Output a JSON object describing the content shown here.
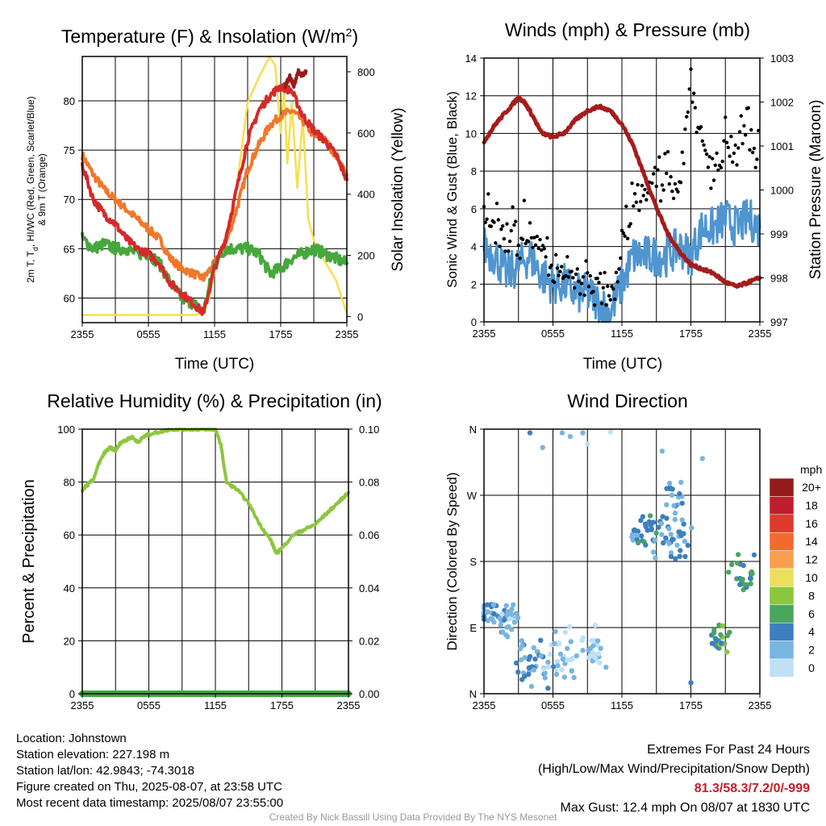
{
  "chart_data": [
    {
      "id": "temp",
      "type": "line",
      "title": "Temperature (F) & Insolation (W/m",
      "title_sup": "2",
      "title_close": ")",
      "xlabel": "Time (UTC)",
      "ylabel_lines": [
        "2m T, T",
        "d",
        ", HI/WC (Red, Green, Scarlet/Blue)",
        "& 9m T (Orange)"
      ],
      "y2label": "Solar Insolation (Yellow)",
      "xticks": [
        "2355",
        "0555",
        "1155",
        "1755",
        "2355"
      ],
      "ylim": [
        57.5,
        84.5
      ],
      "yticks": [
        60,
        65,
        70,
        75,
        80
      ],
      "y2lim": [
        -20,
        850
      ],
      "y2ticks": [
        0,
        200,
        400,
        600,
        800
      ],
      "colors": {
        "t2m": "#d42a2a",
        "td": "#46a83c",
        "t9m": "#f0782a",
        "hi": "#9b1a1a",
        "solar": "#f5df50"
      },
      "series": [
        {
          "key": "t2m",
          "x": [
            0,
            1,
            2,
            3,
            4,
            5,
            6,
            7,
            8,
            9,
            10,
            11,
            12,
            13,
            14,
            15,
            16,
            17,
            18,
            19,
            20,
            21,
            22,
            23,
            24
          ],
          "values": [
            73.5,
            70,
            68.5,
            67.5,
            66,
            65,
            64.5,
            63.5,
            61.5,
            60.5,
            59.5,
            58.5,
            63,
            66,
            71,
            76,
            79,
            80.5,
            81.5,
            81,
            78.5,
            77,
            76,
            74.5,
            72
          ]
        },
        {
          "key": "td",
          "x": [
            0,
            1,
            2,
            3,
            4,
            5,
            6,
            7,
            8,
            9,
            10,
            11,
            12,
            13,
            14,
            15,
            16,
            17,
            18,
            19,
            20,
            21,
            22,
            23,
            24
          ],
          "values": [
            66,
            65,
            65.5,
            65,
            65,
            64.5,
            64.5,
            63.5,
            61.5,
            60,
            59.5,
            58.5,
            63.5,
            65,
            65,
            65,
            64.5,
            62.5,
            63,
            64,
            64.5,
            65,
            64.5,
            64,
            63.5
          ]
        },
        {
          "key": "t9m",
          "x": [
            0,
            1,
            2,
            3,
            4,
            5,
            6,
            7,
            8,
            9,
            10,
            11,
            12,
            13,
            14,
            15,
            16,
            17,
            18,
            19,
            20,
            21,
            22,
            23,
            24
          ],
          "values": [
            74.5,
            72.5,
            71,
            70,
            69,
            68,
            67,
            66,
            64,
            63,
            62.5,
            62,
            63.5,
            65.5,
            69,
            73,
            75.5,
            77.5,
            78.5,
            79,
            78,
            76.5,
            76,
            74.5,
            72.5
          ]
        },
        {
          "key": "hi",
          "x": [
            18.4,
            18.8,
            19.2,
            19.6,
            20,
            20.3
          ],
          "values": [
            81.5,
            82.5,
            81.5,
            83,
            82.5,
            83
          ]
        },
        {
          "key": "solar",
          "x": [
            0,
            1,
            2,
            3,
            4,
            5,
            6,
            7,
            8,
            9,
            10,
            11,
            11.5,
            12,
            13,
            14,
            15,
            16,
            17,
            17.5,
            18,
            18.3,
            18.6,
            19,
            19.5,
            20,
            20.5,
            21,
            22,
            23,
            24
          ],
          "values": [
            5,
            5,
            5,
            5,
            5,
            5,
            5,
            5,
            5,
            5,
            5,
            10,
            60,
            150,
            260,
            420,
            700,
            780,
            850,
            820,
            600,
            750,
            500,
            700,
            420,
            650,
            320,
            250,
            180,
            120,
            10
          ]
        }
      ]
    },
    {
      "id": "wind",
      "type": "line",
      "title": "Winds (mph) & Pressure (mb)",
      "xlabel": "Time (UTC)",
      "ylabel": "Sonic Wind & Gust (Blue, Black)",
      "y2label": "Station Pressure (Maroon)",
      "xticks": [
        "2355",
        "0555",
        "1155",
        "1755",
        "2355"
      ],
      "ylim": [
        0,
        14
      ],
      "yticks": [
        0,
        2,
        4,
        6,
        8,
        10,
        12,
        14
      ],
      "y2lim": [
        997,
        1003
      ],
      "y2ticks": [
        997,
        998,
        999,
        1000,
        1001,
        1002,
        1003
      ],
      "colors": {
        "wind": "#4f95cf",
        "gust": "#000000",
        "pressure": "#a51c1c"
      },
      "series": [
        {
          "key": "wind",
          "x": [
            0,
            1,
            2,
            3,
            4,
            5,
            6,
            7,
            8,
            9,
            10,
            11,
            12,
            13,
            14,
            15,
            16,
            17,
            18,
            19,
            20,
            21,
            22,
            23,
            24
          ],
          "values": [
            4,
            3.5,
            2.5,
            3,
            3.5,
            2.5,
            2,
            2,
            1.5,
            1.5,
            1,
            0.5,
            2,
            3.5,
            3.5,
            3.5,
            3.5,
            4,
            3.5,
            5,
            5,
            5.5,
            5,
            5.5,
            5
          ]
        },
        {
          "key": "gust",
          "x": [
            0,
            1,
            2,
            3,
            4,
            5,
            6,
            7,
            8,
            9,
            10,
            11,
            12,
            13,
            14,
            15,
            16,
            17,
            18,
            19,
            20,
            21,
            22,
            23,
            24
          ],
          "values": [
            6.5,
            5.5,
            4.5,
            4.5,
            5,
            3.5,
            3,
            2.5,
            2,
            2,
            1.5,
            1,
            4,
            6,
            7,
            7.5,
            8,
            7,
            12.4,
            9,
            8,
            9.5,
            9,
            10.5,
            9
          ]
        },
        {
          "key": "pressure",
          "x": [
            0,
            1,
            2,
            3,
            3.5,
            4,
            5,
            6,
            7,
            8,
            9,
            10,
            11,
            12,
            13,
            14,
            15,
            16,
            17,
            18,
            19,
            20,
            21,
            22,
            23,
            24
          ],
          "values": [
            1001.1,
            1001.5,
            1001.8,
            1002.1,
            1002.0,
            1001.8,
            1001.3,
            1001.2,
            1001.3,
            1001.6,
            1001.8,
            1001.9,
            1001.8,
            1001.5,
            1001.0,
            1000.3,
            999.6,
            999.0,
            998.6,
            998.3,
            998.2,
            998.1,
            997.9,
            997.8,
            997.9,
            998.0
          ]
        }
      ]
    },
    {
      "id": "rh",
      "type": "line",
      "title": "Relative Humidity (%) & Precipitation (in)",
      "ylabel": "Percent & Precipitation",
      "xticks": [
        "2355",
        "0555",
        "1155",
        "1755",
        "2355"
      ],
      "ylim": [
        0,
        100
      ],
      "yticks": [
        0,
        20,
        40,
        60,
        80,
        100
      ],
      "y2lim": [
        0,
        0.1
      ],
      "y2ticks": [
        "0.00",
        "0.02",
        "0.04",
        "0.06",
        "0.08",
        "0.10"
      ],
      "colors": {
        "rh": "#8dc63f",
        "precip": "#3ca83c"
      },
      "series": [
        {
          "key": "rh",
          "x": [
            0,
            0.5,
            1,
            1.5,
            2,
            2.5,
            3,
            3.5,
            4,
            4.5,
            5,
            5.5,
            6,
            7,
            8,
            9,
            10,
            11,
            11.5,
            12,
            12.5,
            13,
            14,
            15,
            16,
            17,
            17.5,
            18,
            19,
            20,
            21,
            22,
            23,
            24
          ],
          "values": [
            77,
            79,
            81,
            87,
            91,
            93,
            92,
            95,
            96,
            97,
            95,
            97,
            98,
            99,
            100,
            100,
            100,
            100,
            100,
            100,
            94,
            80,
            77,
            72,
            64,
            58,
            53,
            55,
            60,
            62,
            64,
            68,
            72,
            76
          ]
        },
        {
          "key": "precip",
          "x": [
            0,
            24
          ],
          "values": [
            0,
            0
          ]
        }
      ]
    },
    {
      "id": "dir",
      "type": "scatter",
      "title": "Wind Direction",
      "ylabel": "Direction (Colored By Speed)",
      "xticks": [
        "2355",
        "0555",
        "1155",
        "1755",
        "2355"
      ],
      "ylim": [
        0,
        360
      ],
      "yticks": [
        "N",
        "E",
        "S",
        "W",
        "N"
      ],
      "legend_title": "mph",
      "legend_labels": [
        "20+",
        "18",
        "16",
        "14",
        "12",
        "10",
        "8",
        "6",
        "4",
        "2",
        "0"
      ],
      "legend_colors": [
        "#941b1b",
        "#be1e2d",
        "#dd3a2c",
        "#f26a2e",
        "#f9a04e",
        "#ebe05c",
        "#8cc63f",
        "#4aa55f",
        "#3e7fbe",
        "#78b5e0",
        "#bfe0f5"
      ],
      "clusters": [
        {
          "x": 0.8,
          "dir": 112,
          "spread_x": 1.2,
          "spread_y": 12,
          "n": 30,
          "speed": 3
        },
        {
          "x": 2.3,
          "dir": 95,
          "spread_x": 1.0,
          "spread_y": 18,
          "n": 25,
          "speed": 2
        },
        {
          "x": 4.3,
          "dir": 40,
          "spread_x": 1.3,
          "spread_y": 28,
          "n": 35,
          "speed": 3
        },
        {
          "x": 6.8,
          "dir": 45,
          "spread_x": 1.3,
          "spread_y": 30,
          "n": 30,
          "speed": 1
        },
        {
          "x": 9.5,
          "dir": 60,
          "spread_x": 0.9,
          "spread_y": 22,
          "n": 25,
          "speed": 1
        },
        {
          "x": 14.0,
          "dir": 220,
          "spread_x": 1.2,
          "spread_y": 25,
          "n": 35,
          "speed": 4
        },
        {
          "x": 16.5,
          "dir": 210,
          "spread_x": 1.3,
          "spread_y": 30,
          "n": 35,
          "speed": 3
        },
        {
          "x": 16.8,
          "dir": 270,
          "spread_x": 1.0,
          "spread_y": 25,
          "n": 15,
          "speed": 3
        },
        {
          "x": 20.5,
          "dir": 70,
          "spread_x": 0.8,
          "spread_y": 15,
          "n": 25,
          "speed": 6
        },
        {
          "x": 22.5,
          "dir": 165,
          "spread_x": 1.0,
          "spread_y": 22,
          "n": 25,
          "speed": 5
        }
      ],
      "scattered": [
        {
          "x": 4.0,
          "dir": 355,
          "speed": 3
        },
        {
          "x": 5.1,
          "dir": 335,
          "speed": 2
        },
        {
          "x": 6.8,
          "dir": 355,
          "speed": 1
        },
        {
          "x": 7.5,
          "dir": 350,
          "speed": 2
        },
        {
          "x": 8.6,
          "dir": 355,
          "speed": 1
        },
        {
          "x": 9.0,
          "dir": 340,
          "speed": 0
        },
        {
          "x": 11.0,
          "dir": 356,
          "speed": 0
        },
        {
          "x": 19.0,
          "dir": 320,
          "speed": 1
        },
        {
          "x": 18.0,
          "dir": 15,
          "speed": 3
        },
        {
          "x": 15.5,
          "dir": 330,
          "speed": 2
        }
      ]
    }
  ],
  "info": {
    "location": "Location: Johnstown",
    "elevation": "Station elevation: 227.198 m",
    "latlon": "Station lat/lon: 42.9843; -74.3018",
    "created": "Figure created on Thu, 2025-08-07, at 23:58 UTC",
    "recent": "Most recent data timestamp: 2025/08/07 23:55:00"
  },
  "extremes": {
    "title": "Extremes For Past 24 Hours",
    "subtitle": "(High/Low/Max Wind/Precipitation/Snow Depth)",
    "values": "81.3/58.3/7.2/0/-999",
    "gust": "Max Gust: 12.4 mph On 08/07 at 1830 UTC"
  },
  "credit": "Created By Nick Bassill Using Data Provided By The NYS Mesonet"
}
